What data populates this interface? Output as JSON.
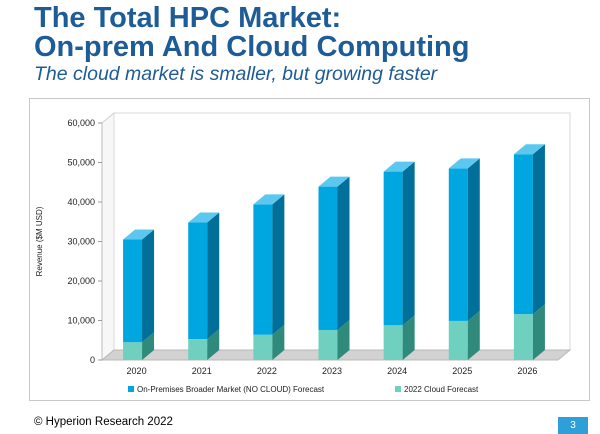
{
  "slide": {
    "title_line1": "The Total HPC Market:",
    "title_line2": "On-prem And Cloud Computing",
    "subtitle": "The cloud market is smaller, but growing faster",
    "footer": "© Hyperion Research 2022",
    "page_number": "3"
  },
  "colors": {
    "title": "#1d5c97",
    "onprem_front": "#00a6e0",
    "onprem_side": "#006f99",
    "onprem_top": "#5cc8ef",
    "cloud_front": "#6fd0c0",
    "cloud_side": "#2f8a7b",
    "cloud_top": "#a6e4da",
    "page_badge": "#2f9fd8"
  },
  "chart_data": {
    "type": "bar",
    "stacked": true,
    "three_d": true,
    "categories": [
      "2020",
      "2021",
      "2022",
      "2023",
      "2024",
      "2025",
      "2026"
    ],
    "series": [
      {
        "name": "2022 Cloud Forecast",
        "values": [
          4500,
          5300,
          6400,
          7600,
          8800,
          9900,
          11600
        ]
      },
      {
        "name": "On-Premises Broader Market (NO CLOUD) Forecast",
        "values": [
          26000,
          29500,
          33000,
          36300,
          38900,
          38600,
          40500
        ]
      }
    ],
    "ylabel": "Revenue ($M USD)",
    "xlabel": "",
    "ylim": [
      0,
      60000
    ],
    "yticks": [
      "0",
      "10,000",
      "20,000",
      "30,000",
      "40,000",
      "50,000",
      "60,000"
    ],
    "grid": false,
    "legend_placement": "bottom"
  }
}
